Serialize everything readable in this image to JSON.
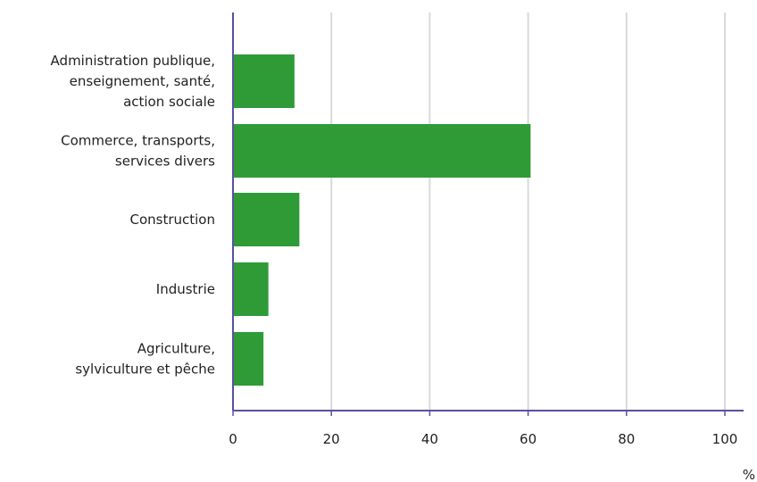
{
  "chart_data": {
    "type": "bar",
    "orientation": "horizontal",
    "categories": [
      [
        "Administration publique,",
        "enseignement, santé,",
        "action sociale"
      ],
      [
        "Commerce, transports,",
        "services divers"
      ],
      [
        "Construction"
      ],
      [
        "Industrie"
      ],
      [
        "Agriculture,",
        "sylviculture et pêche"
      ]
    ],
    "values": [
      12.5,
      60.5,
      13.5,
      7.2,
      6.2
    ],
    "xlim": [
      0,
      103
    ],
    "xticks": [
      "0",
      "20",
      "40",
      "60",
      "80",
      "100"
    ],
    "xunit": "%",
    "grid": true,
    "bar_color": "#2e9b37",
    "axis_color": "#5b4fa3",
    "grid_color": "#d9d9d9"
  }
}
